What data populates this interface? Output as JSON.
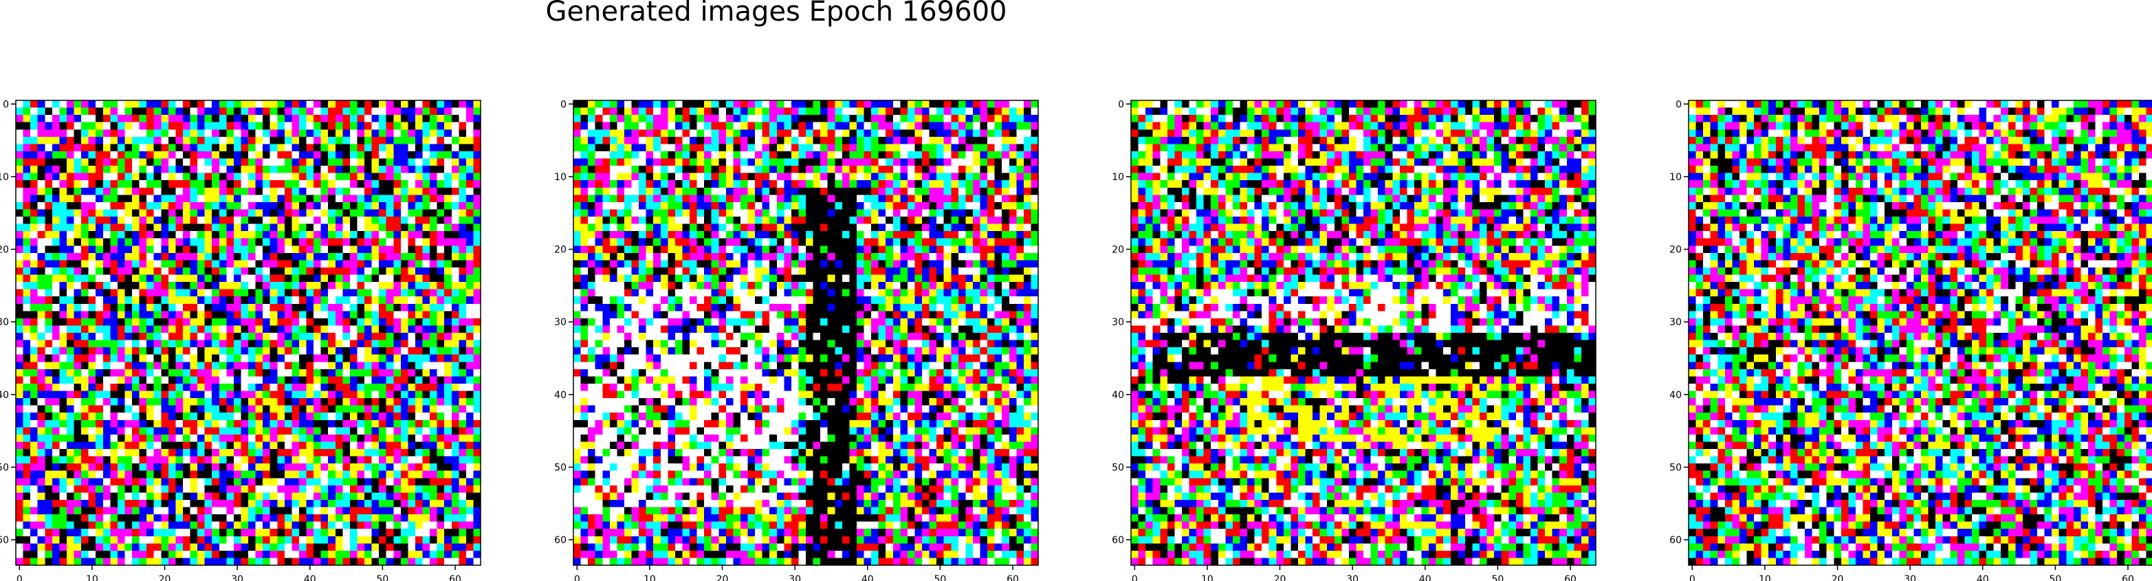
{
  "figure": {
    "title": "Generated images Epoch 169600"
  },
  "chart_data": [
    {
      "type": "heatmap",
      "x_ticks": [
        0,
        10,
        20,
        30,
        40,
        50,
        60
      ],
      "y_ticks": [
        0,
        10,
        20,
        30,
        40,
        50,
        60
      ],
      "xlim": [
        -0.5,
        63.5
      ],
      "ylim": [
        63.5,
        -0.5
      ],
      "pixel_grid": [
        64,
        64
      ],
      "palette": [
        "#ff0000",
        "#00ff00",
        "#0000ff",
        "#ffff00",
        "#ff00ff",
        "#00ffff",
        "#ffffff",
        "#000000"
      ],
      "features": []
    },
    {
      "type": "heatmap",
      "x_ticks": [
        0,
        10,
        20,
        30,
        40,
        50,
        60
      ],
      "y_ticks": [
        0,
        10,
        20,
        30,
        40,
        50,
        60
      ],
      "xlim": [
        -0.5,
        63.5
      ],
      "ylim": [
        63.5,
        -0.5
      ],
      "pixel_grid": [
        64,
        64
      ],
      "palette": [
        "#ff0000",
        "#00ff00",
        "#0000ff",
        "#ffff00",
        "#ff00ff",
        "#00ffff",
        "#ffffff",
        "#000000"
      ],
      "features": [
        {
          "kind": "vertical-band",
          "x_range": [
            32,
            38
          ],
          "y_range": [
            12,
            63
          ],
          "color": "#000000"
        },
        {
          "kind": "bright-region",
          "x_range": [
            0,
            30
          ],
          "y_range": [
            25,
            55
          ],
          "color": "#ffffff"
        }
      ]
    },
    {
      "type": "heatmap",
      "x_ticks": [
        0,
        10,
        20,
        30,
        40,
        50,
        60
      ],
      "y_ticks": [
        0,
        10,
        20,
        30,
        40,
        50,
        60
      ],
      "xlim": [
        -0.5,
        63.5
      ],
      "ylim": [
        63.5,
        -0.5
      ],
      "pixel_grid": [
        64,
        64
      ],
      "palette": [
        "#ff0000",
        "#00ff00",
        "#0000ff",
        "#ffff00",
        "#ff00ff",
        "#00ffff",
        "#ffffff",
        "#000000"
      ],
      "features": [
        {
          "kind": "horizontal-band",
          "x_range": [
            4,
            63
          ],
          "y_range": [
            32,
            37
          ],
          "color": "#000000"
        },
        {
          "kind": "bright-region",
          "x_range": [
            0,
            63
          ],
          "y_range": [
            26,
            31
          ],
          "color": "#ffffff"
        },
        {
          "kind": "bright-region",
          "x_range": [
            15,
            50
          ],
          "y_range": [
            38,
            46
          ],
          "color": "#ffff00"
        }
      ]
    },
    {
      "type": "heatmap",
      "x_ticks": [
        0,
        10,
        20,
        30,
        40,
        50,
        60
      ],
      "y_ticks": [
        0,
        10,
        20,
        30,
        40,
        50,
        60
      ],
      "xlim": [
        -0.5,
        63.5
      ],
      "ylim": [
        63.5,
        -0.5
      ],
      "pixel_grid": [
        64,
        64
      ],
      "palette": [
        "#ff0000",
        "#00ff00",
        "#0000ff",
        "#ffff00",
        "#ff00ff",
        "#00ffff",
        "#ffffff",
        "#000000"
      ],
      "features": []
    }
  ]
}
